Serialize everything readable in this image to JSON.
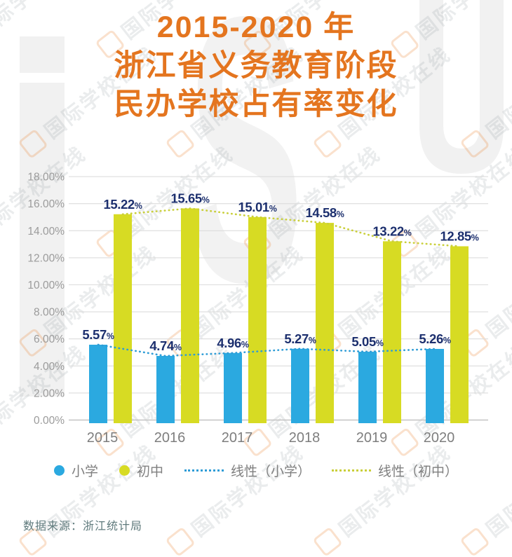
{
  "title": {
    "line1": "2015-2020 年",
    "line2": "浙江省义务教育阶段",
    "line3": "民办学校占有率变化"
  },
  "chart_data": {
    "type": "bar",
    "categories": [
      "2015",
      "2016",
      "2017",
      "2018",
      "2019",
      "2020"
    ],
    "series": [
      {
        "name": "小学",
        "kind": "bar",
        "color": "#2BA9E0",
        "values": [
          5.57,
          4.74,
          4.96,
          5.27,
          5.05,
          5.26
        ]
      },
      {
        "name": "初中",
        "kind": "bar",
        "color": "#D7DB23",
        "values": [
          15.22,
          15.65,
          15.01,
          14.58,
          13.22,
          12.85
        ]
      },
      {
        "name": "线性（小学）",
        "kind": "dotted-line",
        "color": "#2E9CD6",
        "values": [
          5.57,
          4.74,
          4.96,
          5.27,
          5.05,
          5.26
        ]
      },
      {
        "name": "线性（初中）",
        "kind": "dotted-line",
        "color": "#C9CF3A",
        "values": [
          15.22,
          15.65,
          15.01,
          14.58,
          13.22,
          12.85
        ]
      }
    ],
    "value_label_format": "0.00%",
    "value_label_color": "#1C2F6E",
    "ylim": [
      0,
      18
    ],
    "ytick_step": 2,
    "yticks": [
      "18.00%",
      "16.00%",
      "14.00%",
      "12.00%",
      "10.00%",
      "8.00%",
      "6.00%",
      "4.00%",
      "2.00%",
      "0.00%"
    ],
    "grid": true,
    "legend_position": "bottom"
  },
  "source": {
    "label": "数据来源：浙江统计局"
  },
  "watermark": {
    "brand_text": "国际学校在线",
    "letters": [
      "i",
      "S",
      "U"
    ]
  },
  "colors": {
    "title": "#E4751F",
    "primary_bar": "#2BA9E0",
    "secondary_bar": "#D7DB23",
    "value_label": "#1C2F6E",
    "gridline": "#DCDCDC",
    "axis_line": "#C3C3C3",
    "tick_text": "#9B9B9B",
    "source_text": "#5F7A7C"
  }
}
